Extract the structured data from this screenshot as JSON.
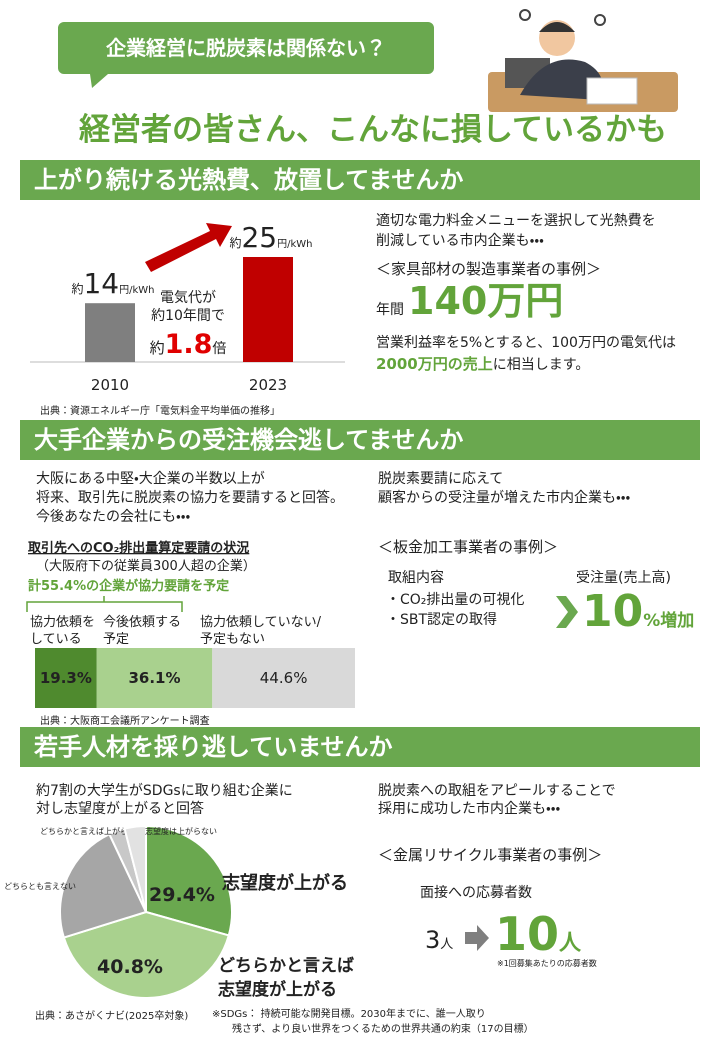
{
  "header": {
    "question": "企業経営に脱炭素は関係ない？",
    "title": "経営者の皆さん、こんなに損しているかも"
  },
  "section1": {
    "heading": "上がり続ける光熱費、放置してませんか",
    "chart": {
      "type": "bar",
      "categories": [
        "2010",
        "2023"
      ],
      "values": [
        14,
        25
      ],
      "colors": [
        "#7f7f7f",
        "#c00000"
      ],
      "value_prefix": "約",
      "value_unit": "円/kWh",
      "note": [
        "電気代が",
        "約10年間で"
      ],
      "ratio_prefix": "約",
      "ratio": 1.8,
      "ratio_unit": "倍",
      "ratio_color": "#e00000"
    },
    "source": "出典：資源エネルギー庁「電気料金平均単価の推移」",
    "intro": [
      "適切な電力料金メニューを選択して光熱費を",
      "削減している市内企業も・・・"
    ],
    "case": "＜家具部材の製造事業者の事例＞",
    "result_prefix": "年間",
    "result": "140万円",
    "explain": "営業利益率を5%とすると、100万円の電気代は",
    "explain_highlight": "2000万円の売上",
    "explain_tail": "に相当します。"
  },
  "section2": {
    "heading": "大手企業からの受注機会逃してませんか",
    "intro": [
      "大阪にある中堅・大企業の半数以上が",
      "将来、取引先に脱炭素の協力を要請すると回答。",
      "今後あなたの会社にも・・・"
    ],
    "chart": {
      "type": "stacked_bar",
      "title": "取引先へのCO₂排出量算定要請の状況",
      "subtitle": "（大阪府下の従業員300人超の企業）",
      "annotation": "計55.4%の企業が協力要請を予定",
      "series": [
        {
          "name": [
            "協力依頼を",
            "している"
          ],
          "value": 19.3,
          "value_label": "19.3%",
          "color": "#4f8a2e"
        },
        {
          "name": [
            "今後依頼する",
            "予定"
          ],
          "value": 36.1,
          "value_label": "36.1%",
          "color": "#a9d18e"
        },
        {
          "name": [
            "協力依頼していない/",
            "予定もない"
          ],
          "value": 44.6,
          "value_label": "44.6%",
          "color": "#d9d9d9"
        }
      ]
    },
    "source": "出典：大阪商工会議所アンケート調査",
    "right_intro": [
      "脱炭素要請に応えて",
      "顧客からの受注量が増えた市内企業も・・・"
    ],
    "case": "＜板金加工事業者の事例＞",
    "actions_label": "取組内容",
    "actions": [
      "・CO₂排出量の可視化",
      "・SBT認定の取得"
    ],
    "result_label": "受注量(売上高)",
    "result": 10,
    "result_unit": "%増加"
  },
  "section3": {
    "heading": "若手人材を採り逃していませんか",
    "intro": [
      "約7割の大学生がSDGsに取り組む企業に",
      "対し志望度が上がると回答"
    ],
    "chart": {
      "type": "pie",
      "slices": [
        {
          "name": [
            "志望度が上がる"
          ],
          "value": 29.4,
          "value_label": "29.4%",
          "color": "#6aa84f"
        },
        {
          "name": [
            "どちらかと言えば",
            "志望度が上がる"
          ],
          "value": 40.8,
          "value_label": "40.8%",
          "color": "#a9d18e"
        },
        {
          "name": [
            "どちらとも言えない"
          ],
          "value": 22.8,
          "color": "#a6a6a6"
        },
        {
          "name": [
            "どちらかと言えば上がらない"
          ],
          "value": 3,
          "color": "#c8c8c8"
        },
        {
          "name": [
            "志望度は上がらない"
          ],
          "value": 4,
          "color": "#e2e2e2"
        }
      ]
    },
    "source": "出典：あさがくナビ(2025卒対象)",
    "note": [
      "※SDGs： 持続可能な開発目標。2030年までに、誰一人取り",
      "残さず、より良い世界をつくるための世界共通の約束（17の目標）"
    ],
    "right_intro": [
      "脱炭素への取組をアピールすることで",
      "採用に成功した市内企業も・・・"
    ],
    "case": "＜金属リサイクル事業者の事例＞",
    "metric": "面接への応募者数",
    "before": 3,
    "before_unit": "人",
    "after": 10,
    "after_unit": "人",
    "metric_note": "※1回募集あたりの応募者数"
  }
}
